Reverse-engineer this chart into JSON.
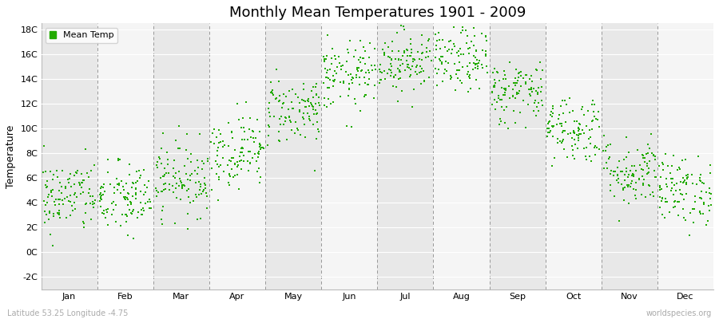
{
  "title": "Monthly Mean Temperatures 1901 - 2009",
  "ylabel": "Temperature",
  "subtitle_left": "Latitude 53.25 Longitude -4.75",
  "subtitle_right": "worldspecies.org",
  "legend_label": "Mean Temp",
  "dot_color": "#22aa00",
  "background_color": "#ffffff",
  "plot_bg_color": "#e8e8e8",
  "alt_band_color": "#f5f5f5",
  "grid_color": "#ffffff",
  "vline_color": "#999999",
  "ylim_min": -3.0,
  "ylim_max": 18.5,
  "yticks": [
    -2,
    0,
    2,
    4,
    6,
    8,
    10,
    12,
    14,
    16,
    18
  ],
  "ytick_labels": [
    "-2C",
    "0C",
    "2C",
    "4C",
    "6C",
    "8C",
    "10C",
    "12C",
    "14C",
    "16C",
    "18C"
  ],
  "months": [
    "Jan",
    "Feb",
    "Mar",
    "Apr",
    "May",
    "Jun",
    "Jul",
    "Aug",
    "Sep",
    "Oct",
    "Nov",
    "Dec"
  ],
  "month_mean_temps": [
    4.5,
    4.3,
    6.0,
    8.2,
    11.5,
    14.2,
    15.5,
    15.5,
    13.0,
    10.0,
    6.5,
    5.0
  ],
  "month_std_temps": [
    1.5,
    1.5,
    1.5,
    1.5,
    1.4,
    1.4,
    1.3,
    1.3,
    1.3,
    1.4,
    1.4,
    1.4
  ],
  "num_years": 109,
  "seed": 42,
  "dot_size": 4,
  "title_fontsize": 13,
  "axis_fontsize": 8,
  "ylabel_fontsize": 9,
  "legend_fontsize": 8
}
